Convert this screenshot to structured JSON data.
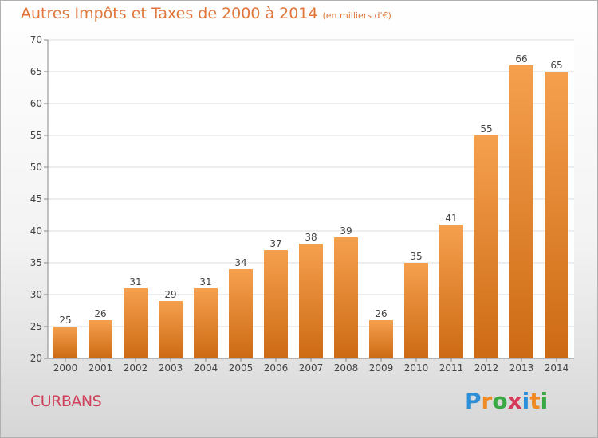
{
  "title": "Autres Impôts et Taxes de 2000 à 2014",
  "unit_label": "(en milliers d'€)",
  "commune": "CURBANS",
  "logo": {
    "letters": [
      "P",
      "r",
      "o",
      "x",
      "i",
      "t",
      "i"
    ],
    "colors": [
      "#2d8fd8",
      "#f08a24",
      "#3aa843",
      "#d63a5a",
      "#2d8fd8",
      "#f08a24",
      "#3aa843"
    ]
  },
  "colors": {
    "bar_top": "#f5a04e",
    "bar_bottom": "#cd6a14",
    "title": "#e0763a",
    "commune": "#d0405a"
  },
  "chart_data": {
    "type": "bar",
    "categories": [
      "2000",
      "2001",
      "2002",
      "2003",
      "2004",
      "2005",
      "2006",
      "2007",
      "2008",
      "2009",
      "2010",
      "2011",
      "2012",
      "2013",
      "2014"
    ],
    "values": [
      25,
      26,
      31,
      29,
      31,
      34,
      37,
      38,
      39,
      26,
      35,
      41,
      55,
      66,
      65
    ],
    "ylim": [
      20,
      70
    ],
    "yticks": [
      20,
      25,
      30,
      35,
      40,
      45,
      50,
      55,
      60,
      65,
      70
    ],
    "grid": true,
    "data_labels": true
  }
}
